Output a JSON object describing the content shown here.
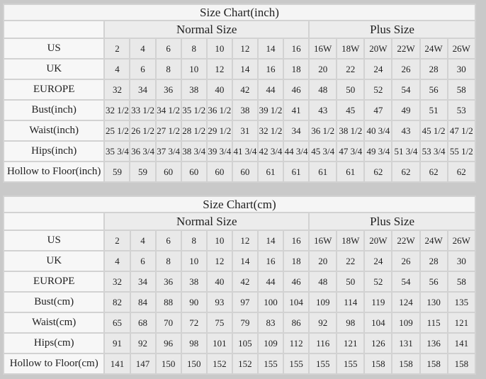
{
  "colors": {
    "page_bg": "#c9c9c9",
    "title_bg": "#f5f5f5",
    "label_bg": "#f7f7f7",
    "group_header_bg": "#ececec",
    "cell_bg": "#e9e9e9",
    "grid_gap": "#d2d2d2",
    "text": "#1f1f1f"
  },
  "chart_data": [
    {
      "type": "table",
      "title": "Size Chart(inch)",
      "column_groups": [
        {
          "label": "Normal Size",
          "span": 8
        },
        {
          "label": "Plus Size",
          "span": 6
        }
      ],
      "rows": [
        {
          "label": "US",
          "normal": [
            "2",
            "4",
            "6",
            "8",
            "10",
            "12",
            "14",
            "16"
          ],
          "plus": [
            "16W",
            "18W",
            "20W",
            "22W",
            "24W",
            "26W"
          ]
        },
        {
          "label": "UK",
          "normal": [
            "4",
            "6",
            "8",
            "10",
            "12",
            "14",
            "16",
            "18"
          ],
          "plus": [
            "20",
            "22",
            "24",
            "26",
            "28",
            "30"
          ]
        },
        {
          "label": "EUROPE",
          "normal": [
            "32",
            "34",
            "36",
            "38",
            "40",
            "42",
            "44",
            "46"
          ],
          "plus": [
            "48",
            "50",
            "52",
            "54",
            "56",
            "58"
          ]
        },
        {
          "label": "Bust(inch)",
          "normal": [
            "32 1/2",
            "33 1/2",
            "34 1/2",
            "35 1/2",
            "36 1/2",
            "38",
            "39 1/2",
            "41"
          ],
          "plus": [
            "43",
            "45",
            "47",
            "49",
            "51",
            "53"
          ]
        },
        {
          "label": "Waist(inch)",
          "normal": [
            "25 1/2",
            "26 1/2",
            "27 1/2",
            "28 1/2",
            "29 1/2",
            "31",
            "32 1/2",
            "34"
          ],
          "plus": [
            "36 1/2",
            "38 1/2",
            "40 3/4",
            "43",
            "45 1/2",
            "47 1/2"
          ]
        },
        {
          "label": "Hips(inch)",
          "normal": [
            "35 3/4",
            "36 3/4",
            "37 3/4",
            "38 3/4",
            "39 3/4",
            "41 3/4",
            "42 3/4",
            "44 3/4"
          ],
          "plus": [
            "45 3/4",
            "47 3/4",
            "49 3/4",
            "51 3/4",
            "53 3/4",
            "55 1/2"
          ]
        },
        {
          "label": "Hollow to Floor(inch)",
          "normal": [
            "59",
            "59",
            "60",
            "60",
            "60",
            "60",
            "61",
            "61"
          ],
          "plus": [
            "61",
            "61",
            "62",
            "62",
            "62",
            "62"
          ]
        }
      ]
    },
    {
      "type": "table",
      "title": "Size Chart(cm)",
      "column_groups": [
        {
          "label": "Normal Size",
          "span": 8
        },
        {
          "label": "Plus Size",
          "span": 6
        }
      ],
      "rows": [
        {
          "label": "US",
          "normal": [
            "2",
            "4",
            "6",
            "8",
            "10",
            "12",
            "14",
            "16"
          ],
          "plus": [
            "16W",
            "18W",
            "20W",
            "22W",
            "24W",
            "26W"
          ]
        },
        {
          "label": "UK",
          "normal": [
            "4",
            "6",
            "8",
            "10",
            "12",
            "14",
            "16",
            "18"
          ],
          "plus": [
            "20",
            "22",
            "24",
            "26",
            "28",
            "30"
          ]
        },
        {
          "label": "EUROPE",
          "normal": [
            "32",
            "34",
            "36",
            "38",
            "40",
            "42",
            "44",
            "46"
          ],
          "plus": [
            "48",
            "50",
            "52",
            "54",
            "56",
            "58"
          ]
        },
        {
          "label": "Bust(cm)",
          "normal": [
            "82",
            "84",
            "88",
            "90",
            "93",
            "97",
            "100",
            "104"
          ],
          "plus": [
            "109",
            "114",
            "119",
            "124",
            "130",
            "135"
          ]
        },
        {
          "label": "Waist(cm)",
          "normal": [
            "65",
            "68",
            "70",
            "72",
            "75",
            "79",
            "83",
            "86"
          ],
          "plus": [
            "92",
            "98",
            "104",
            "109",
            "115",
            "121"
          ]
        },
        {
          "label": "Hips(cm)",
          "normal": [
            "91",
            "92",
            "96",
            "98",
            "101",
            "105",
            "109",
            "112"
          ],
          "plus": [
            "116",
            "121",
            "126",
            "131",
            "136",
            "141"
          ]
        },
        {
          "label": "Hollow to Floor(cm)",
          "normal": [
            "141",
            "147",
            "150",
            "150",
            "152",
            "152",
            "155",
            "155"
          ],
          "plus": [
            "155",
            "155",
            "158",
            "158",
            "158",
            "158"
          ]
        }
      ]
    }
  ]
}
